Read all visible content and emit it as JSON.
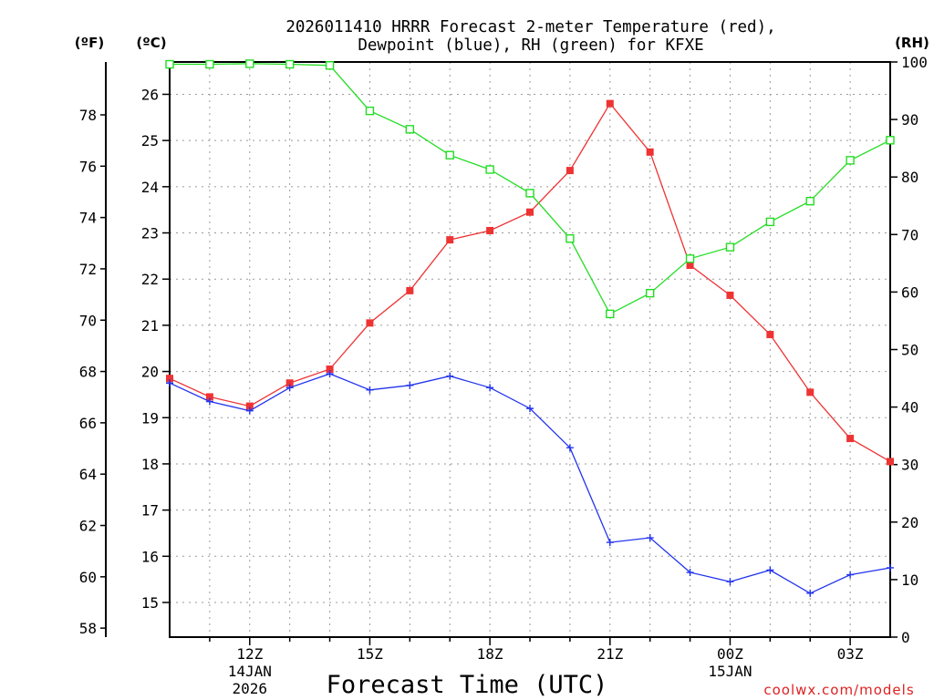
{
  "chart_data": {
    "type": "line",
    "title_line1": "2026011410 HRRR Forecast 2-meter Temperature (red),",
    "title_line2": "Dewpoint (blue), RH (green) for KFXE",
    "xlabel": "Forecast Time (UTC)",
    "credit": "coolwx.com/models",
    "units": {
      "fahrenheit": "(ºF)",
      "celsius": "(ºC)",
      "rh": "(RH)"
    },
    "x_hours": [
      10,
      11,
      12,
      13,
      14,
      15,
      16,
      17,
      18,
      19,
      20,
      21,
      22,
      23,
      24,
      25,
      26,
      27,
      28
    ],
    "x_range": [
      10,
      28
    ],
    "x_ticks": [
      {
        "hour": 12,
        "lines": [
          "12Z",
          "14JAN",
          "2026"
        ]
      },
      {
        "hour": 15,
        "lines": [
          "15Z"
        ]
      },
      {
        "hour": 18,
        "lines": [
          "18Z"
        ]
      },
      {
        "hour": 21,
        "lines": [
          "21Z"
        ]
      },
      {
        "hour": 24,
        "lines": [
          "00Z",
          "15JAN"
        ]
      },
      {
        "hour": 27,
        "lines": [
          "03Z"
        ]
      }
    ],
    "celsius_range": [
      14.25,
      26.7
    ],
    "celsius_ticks": [
      "15",
      "16",
      "17",
      "18",
      "19",
      "20",
      "21",
      "22",
      "23",
      "24",
      "25",
      "26"
    ],
    "fahrenheit_ticks": [
      "58",
      "60",
      "62",
      "64",
      "66",
      "68",
      "70",
      "72",
      "74",
      "76",
      "78"
    ],
    "rh_range": [
      0,
      100
    ],
    "rh_ticks": [
      "0",
      "10",
      "20",
      "30",
      "40",
      "50",
      "60",
      "70",
      "80",
      "90",
      "100"
    ],
    "series": [
      {
        "name": "2-meter Temperature",
        "color": "#ee3333",
        "axis": "celsius",
        "marker": "filled-square",
        "values": [
          19.85,
          19.45,
          19.25,
          19.75,
          20.05,
          21.05,
          21.75,
          22.85,
          23.05,
          23.45,
          24.35,
          25.8,
          24.75,
          22.3,
          21.65,
          20.8,
          19.55,
          18.55,
          18.05
        ]
      },
      {
        "name": "Dewpoint",
        "color": "#2233ee",
        "axis": "celsius",
        "marker": "plus",
        "values": [
          19.75,
          19.35,
          19.15,
          19.65,
          19.95,
          19.6,
          19.7,
          19.9,
          19.65,
          19.2,
          18.35,
          16.3,
          16.4,
          15.65,
          15.45,
          15.7,
          15.2,
          15.6,
          15.75
        ]
      },
      {
        "name": "Relative Humidity",
        "color": "#22dd22",
        "axis": "rh",
        "marker": "open-square",
        "values": [
          99.6,
          99.6,
          99.7,
          99.6,
          99.4,
          91.5,
          88.3,
          83.8,
          81.3,
          77.2,
          69.3,
          56.2,
          59.8,
          65.8,
          67.8,
          72.2,
          75.8,
          82.9,
          86.4
        ]
      }
    ]
  }
}
